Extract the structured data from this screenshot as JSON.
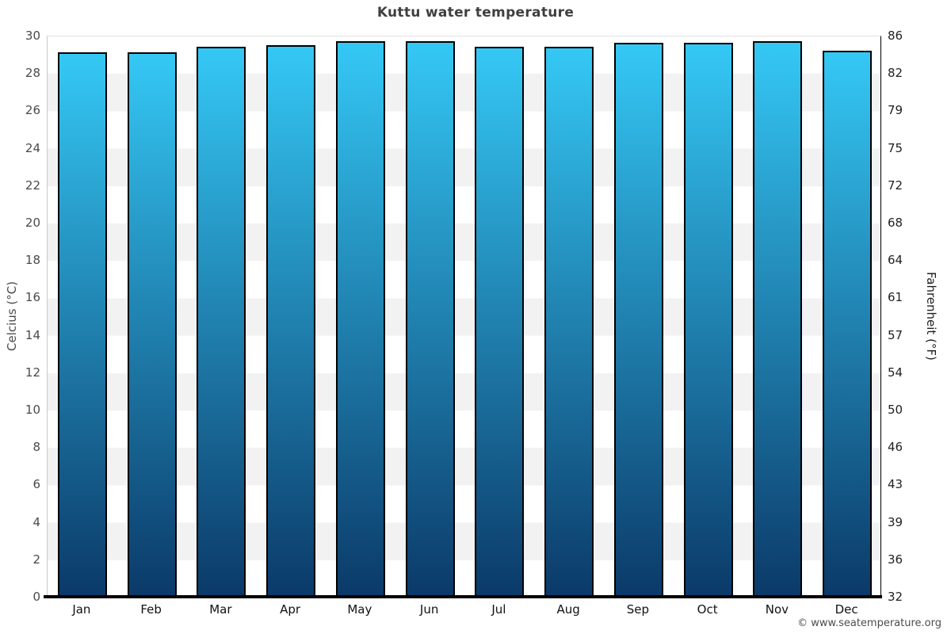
{
  "page": {
    "attribution": "© www.seatemperature.org"
  },
  "chart_data": {
    "type": "bar",
    "title": "Kuttu water temperature",
    "categories": [
      "Jan",
      "Feb",
      "Mar",
      "Apr",
      "May",
      "Jun",
      "Jul",
      "Aug",
      "Sep",
      "Oct",
      "Nov",
      "Dec"
    ],
    "values": [
      29.1,
      29.1,
      29.4,
      29.5,
      29.7,
      29.7,
      29.4,
      29.4,
      29.6,
      29.6,
      29.7,
      29.2
    ],
    "value_unit": "°C",
    "xlabel": "",
    "ylabel_left": "Celcius (°C)",
    "ylabel_right": "Fahrenheit (°F)",
    "ylim_left": [
      0,
      30
    ],
    "left_tick_values": [
      30,
      28,
      26,
      24,
      22,
      20,
      18,
      16,
      14,
      12,
      10,
      8,
      6,
      4,
      2,
      0
    ],
    "right_tick_labels": [
      "86",
      "82",
      "79",
      "75",
      "72",
      "68",
      "64",
      "61",
      "57",
      "54",
      "50",
      "46",
      "43",
      "39",
      "36",
      "32"
    ],
    "legend": null,
    "grid": "alternating horizontal bands every 2 degrees",
    "colors": {
      "bar_top": "#35c8f5",
      "bar_bottom": "#0b3a69",
      "bar_border": "#000000",
      "band_light": "#ffffff",
      "band_dark": "#f2f2f2",
      "title_text": "#3f3f3f",
      "left_axis_text": "#4a4a4a",
      "right_axis_text": "#1f1f1f",
      "left_axis_line": "#c9c9c9",
      "right_axis_line": "#000000",
      "bottom_axis_line": "#000000"
    }
  }
}
